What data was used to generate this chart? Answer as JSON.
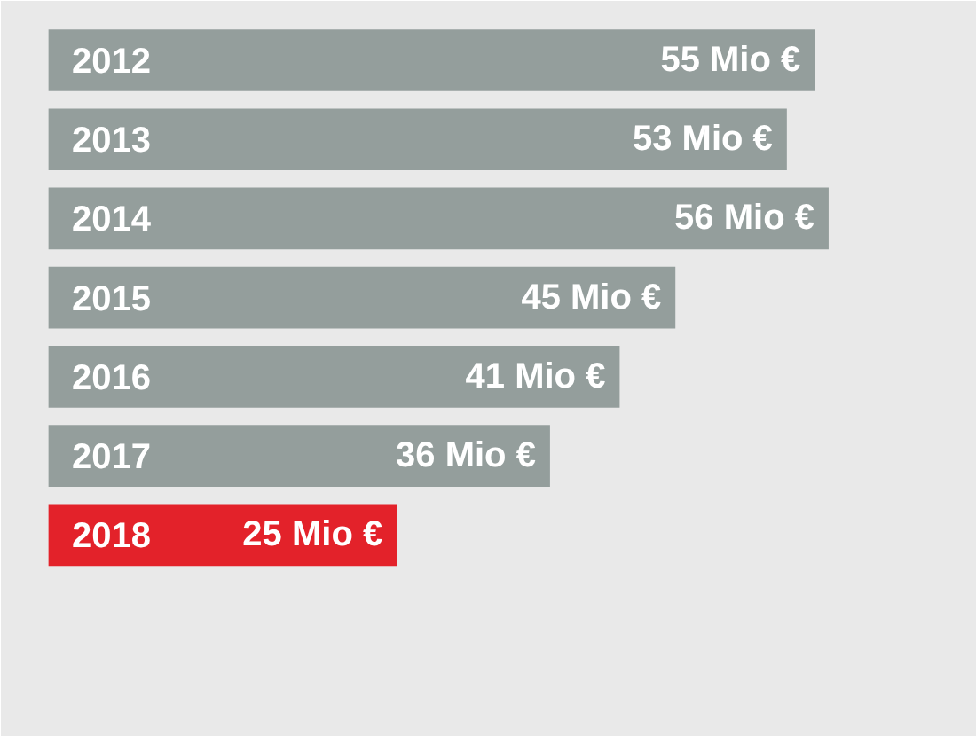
{
  "chart_data": {
    "type": "bar",
    "orientation": "horizontal",
    "categories": [
      "2012",
      "2013",
      "2014",
      "2015",
      "2016",
      "2017",
      "2018"
    ],
    "values": [
      55,
      53,
      56,
      45,
      41,
      36,
      25
    ],
    "colors": [
      "#949e9c",
      "#949e9c",
      "#949e9c",
      "#949e9c",
      "#949e9c",
      "#949e9c",
      "#e3222a"
    ],
    "value_labels": [
      "55 Mio €",
      "53 Mio €",
      "56 Mio €",
      "45 Mio €",
      "41 Mio €",
      "36 Mio €",
      "25 Mio €"
    ]
  }
}
